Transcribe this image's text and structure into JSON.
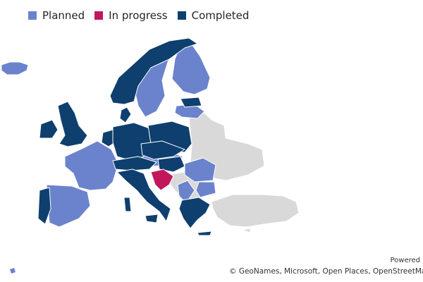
{
  "legend": {
    "items": [
      {
        "label": "Planned",
        "color": "#6b83cc"
      },
      {
        "label": "In progress",
        "color": "#c2185b"
      },
      {
        "label": "Completed",
        "color": "#0e3f6e"
      }
    ]
  },
  "colors": {
    "planned": "#6b83cc",
    "in_progress": "#c2185b",
    "completed": "#0e3f6e",
    "no_data": "#d9d9d9",
    "border": "#ffffff"
  },
  "attribution": {
    "powered": "Powered",
    "copyright": "© GeoNames, Microsoft, Open Places, OpenStreetMap, T"
  }
}
